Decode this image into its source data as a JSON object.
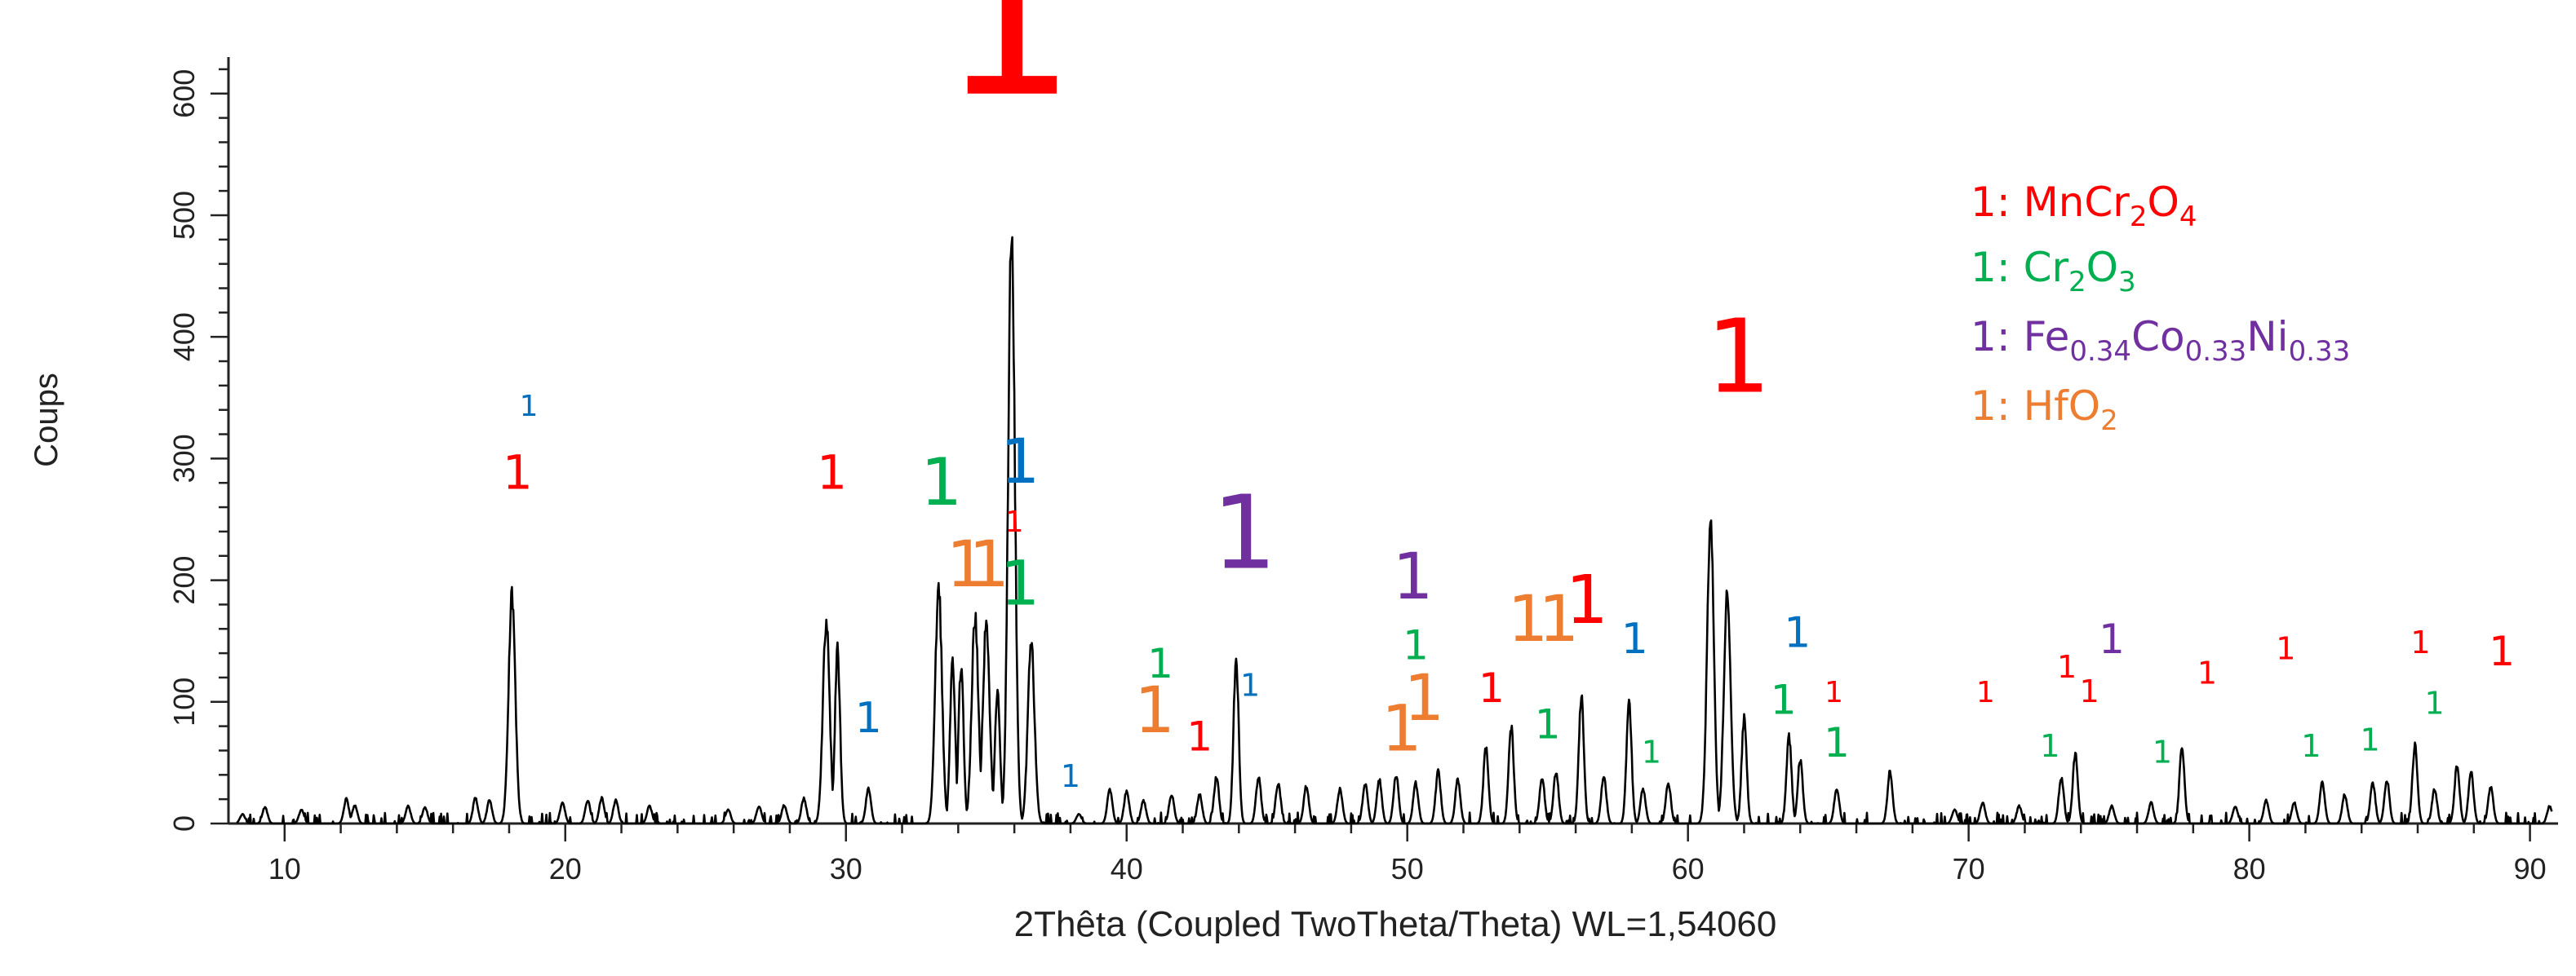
{
  "chart_data": {
    "type": "line",
    "title": "",
    "xlabel": "2Thêta (Coupled TwoTheta/Theta) WL=1,54060",
    "ylabel": "Coups",
    "xlim": [
      8,
      91
    ],
    "ylim": [
      0,
      630
    ],
    "xticks": [
      "10",
      "20",
      "30",
      "40",
      "50",
      "60",
      "70",
      "80",
      "90"
    ],
    "yticks": [
      "0",
      "100",
      "200",
      "300",
      "400",
      "500",
      "600"
    ],
    "grid": false,
    "legend_position": "top-right",
    "colors": {
      "trace": "#000000",
      "MnCr2O4": "#ff0000",
      "Cr2O3": "#00b050",
      "FeCoNi": "#7030a0",
      "HfO2": "#ed7d31",
      "unlabeled": "#0070c0"
    },
    "legend": [
      {
        "marker": "1",
        "colon": ": ",
        "parts": [
          [
            "MnCr",
            ""
          ],
          [
            "2",
            "sub"
          ],
          [
            "O",
            ""
          ],
          [
            "4",
            "sub"
          ]
        ],
        "color_key": "MnCr2O4"
      },
      {
        "marker": "1",
        "colon": ": ",
        "parts": [
          [
            "Cr",
            ""
          ],
          [
            "2",
            "sub"
          ],
          [
            "O",
            ""
          ],
          [
            "3",
            "sub"
          ]
        ],
        "color_key": "Cr2O3"
      },
      {
        "marker": "1",
        "colon": ": ",
        "parts": [
          [
            "Fe",
            ""
          ],
          [
            "0.34",
            "sub"
          ],
          [
            "Co",
            ""
          ],
          [
            "0.33",
            "sub"
          ],
          [
            "Ni",
            ""
          ],
          [
            "0.33",
            "sub"
          ]
        ],
        "color_key": "FeCoNi"
      },
      {
        "marker": "1",
        "colon": ": ",
        "parts": [
          [
            "HfO",
            ""
          ],
          [
            "2",
            "sub"
          ]
        ],
        "color_key": "HfO2"
      }
    ],
    "peaks": [
      [
        8.5,
        8
      ],
      [
        9.3,
        14
      ],
      [
        10.6,
        12
      ],
      [
        12.2,
        21
      ],
      [
        12.5,
        16
      ],
      [
        14.4,
        15
      ],
      [
        15.0,
        14
      ],
      [
        16.8,
        22
      ],
      [
        17.3,
        20
      ],
      [
        18.1,
        196
      ],
      [
        19.9,
        18
      ],
      [
        20.8,
        20
      ],
      [
        21.3,
        22
      ],
      [
        21.8,
        20
      ],
      [
        23.0,
        15
      ],
      [
        25.8,
        12
      ],
      [
        26.9,
        15
      ],
      [
        27.8,
        16
      ],
      [
        28.5,
        22
      ],
      [
        29.3,
        175
      ],
      [
        29.7,
        150
      ],
      [
        30.8,
        30
      ],
      [
        33.3,
        205
      ],
      [
        33.8,
        140
      ],
      [
        34.1,
        135
      ],
      [
        34.6,
        178
      ],
      [
        35.0,
        175
      ],
      [
        35.4,
        115
      ],
      [
        35.9,
        505
      ],
      [
        36.6,
        155
      ],
      [
        38.3,
        8
      ],
      [
        39.4,
        30
      ],
      [
        40.0,
        28
      ],
      [
        40.6,
        20
      ],
      [
        41.6,
        25
      ],
      [
        42.6,
        25
      ],
      [
        43.2,
        40
      ],
      [
        43.9,
        145
      ],
      [
        44.7,
        40
      ],
      [
        45.4,
        35
      ],
      [
        46.4,
        32
      ],
      [
        47.6,
        30
      ],
      [
        48.5,
        35
      ],
      [
        49.0,
        38
      ],
      [
        49.6,
        42
      ],
      [
        50.3,
        35
      ],
      [
        51.1,
        45
      ],
      [
        51.8,
        38
      ],
      [
        52.8,
        65
      ],
      [
        53.7,
        85
      ],
      [
        54.8,
        40
      ],
      [
        55.3,
        45
      ],
      [
        56.2,
        110
      ],
      [
        57.0,
        42
      ],
      [
        57.9,
        105
      ],
      [
        58.4,
        30
      ],
      [
        59.3,
        35
      ],
      [
        60.8,
        260
      ],
      [
        61.4,
        200
      ],
      [
        62.0,
        90
      ],
      [
        63.6,
        75
      ],
      [
        64.0,
        55
      ],
      [
        65.3,
        30
      ],
      [
        67.2,
        45
      ],
      [
        69.5,
        12
      ],
      [
        70.5,
        18
      ],
      [
        71.8,
        15
      ],
      [
        73.3,
        40
      ],
      [
        73.8,
        60
      ],
      [
        75.1,
        15
      ],
      [
        76.5,
        18
      ],
      [
        77.6,
        65
      ],
      [
        79.5,
        15
      ],
      [
        80.6,
        20
      ],
      [
        81.6,
        18
      ],
      [
        82.6,
        35
      ],
      [
        83.4,
        25
      ],
      [
        84.4,
        35
      ],
      [
        84.9,
        38
      ],
      [
        85.9,
        68
      ],
      [
        86.6,
        30
      ],
      [
        87.4,
        50
      ],
      [
        87.9,
        45
      ],
      [
        88.6,
        32
      ],
      [
        90.7,
        15
      ]
    ],
    "annotations": [
      {
        "text": "1",
        "x": 18.3,
        "y": 275,
        "phase": "MnCr2O4",
        "size": 58
      },
      {
        "text": "1",
        "x": 18.7,
        "y": 335,
        "phase": "unlabeled",
        "size": 36
      },
      {
        "text": "1",
        "x": 29.5,
        "y": 275,
        "phase": "MnCr2O4",
        "size": 58
      },
      {
        "text": "1",
        "x": 30.8,
        "y": 75,
        "phase": "unlabeled",
        "size": 52
      },
      {
        "text": "1",
        "x": 33.4,
        "y": 262,
        "phase": "Cr2O3",
        "size": 80
      },
      {
        "text": "1",
        "x": 34.3,
        "y": 195,
        "phase": "HfO2",
        "size": 78
      },
      {
        "text": "1",
        "x": 35.1,
        "y": 195,
        "phase": "HfO2",
        "size": 78
      },
      {
        "text": "1",
        "x": 35.8,
        "y": 600,
        "phase": "MnCr2O4",
        "size": 260
      },
      {
        "text": "1",
        "x": 36.2,
        "y": 280,
        "phase": "unlabeled",
        "size": 76
      },
      {
        "text": "1",
        "x": 36.0,
        "y": 240,
        "phase": "MnCr2O4",
        "size": 36
      },
      {
        "text": "1",
        "x": 36.2,
        "y": 180,
        "phase": "Cr2O3",
        "size": 76
      },
      {
        "text": "1",
        "x": 38.0,
        "y": 30,
        "phase": "unlabeled",
        "size": 38
      },
      {
        "text": "1",
        "x": 41.2,
        "y": 120,
        "phase": "Cr2O3",
        "size": 50
      },
      {
        "text": "1",
        "x": 41.0,
        "y": 75,
        "phase": "HfO2",
        "size": 78
      },
      {
        "text": "1",
        "x": 42.6,
        "y": 60,
        "phase": "MnCr2O4",
        "size": 50
      },
      {
        "text": "1",
        "x": 44.2,
        "y": 210,
        "phase": "FeCoNi",
        "size": 125
      },
      {
        "text": "1",
        "x": 44.4,
        "y": 105,
        "phase": "unlabeled",
        "size": 38
      },
      {
        "text": "1",
        "x": 50.2,
        "y": 185,
        "phase": "FeCoNi",
        "size": 78
      },
      {
        "text": "1",
        "x": 50.3,
        "y": 135,
        "phase": "Cr2O3",
        "size": 50
      },
      {
        "text": "1",
        "x": 49.8,
        "y": 60,
        "phase": "HfO2",
        "size": 78
      },
      {
        "text": "1",
        "x": 50.6,
        "y": 85,
        "phase": "HfO2",
        "size": 78
      },
      {
        "text": "1",
        "x": 53.0,
        "y": 100,
        "phase": "MnCr2O4",
        "size": 50
      },
      {
        "text": "1",
        "x": 54.3,
        "y": 150,
        "phase": "HfO2",
        "size": 78
      },
      {
        "text": "1",
        "x": 55.4,
        "y": 150,
        "phase": "HfO2",
        "size": 78
      },
      {
        "text": "1",
        "x": 56.4,
        "y": 165,
        "phase": "MnCr2O4",
        "size": 82
      },
      {
        "text": "1",
        "x": 55.0,
        "y": 70,
        "phase": "Cr2O3",
        "size": 50
      },
      {
        "text": "1",
        "x": 58.1,
        "y": 140,
        "phase": "unlabeled",
        "size": 52
      },
      {
        "text": "1",
        "x": 58.7,
        "y": 50,
        "phase": "Cr2O3",
        "size": 38
      },
      {
        "text": "1",
        "x": 61.8,
        "y": 355,
        "phase": "MnCr2O4",
        "size": 125
      },
      {
        "text": "1",
        "x": 63.4,
        "y": 90,
        "phase": "Cr2O3",
        "size": 50
      },
      {
        "text": "1",
        "x": 63.9,
        "y": 145,
        "phase": "unlabeled",
        "size": 52
      },
      {
        "text": "1",
        "x": 65.2,
        "y": 100,
        "phase": "MnCr2O4",
        "size": 36
      },
      {
        "text": "1",
        "x": 65.3,
        "y": 55,
        "phase": "Cr2O3",
        "size": 50
      },
      {
        "text": "1",
        "x": 70.6,
        "y": 100,
        "phase": "MnCr2O4",
        "size": 36
      },
      {
        "text": "1",
        "x": 72.9,
        "y": 55,
        "phase": "Cr2O3",
        "size": 38
      },
      {
        "text": "1",
        "x": 73.5,
        "y": 120,
        "phase": "MnCr2O4",
        "size": 38
      },
      {
        "text": "1",
        "x": 74.3,
        "y": 100,
        "phase": "MnCr2O4",
        "size": 38
      },
      {
        "text": "1",
        "x": 75.1,
        "y": 140,
        "phase": "FeCoNi",
        "size": 50
      },
      {
        "text": "1",
        "x": 76.9,
        "y": 50,
        "phase": "Cr2O3",
        "size": 38
      },
      {
        "text": "1",
        "x": 78.5,
        "y": 115,
        "phase": "MnCr2O4",
        "size": 38
      },
      {
        "text": "1",
        "x": 81.3,
        "y": 135,
        "phase": "MnCr2O4",
        "size": 38
      },
      {
        "text": "1",
        "x": 82.2,
        "y": 55,
        "phase": "Cr2O3",
        "size": 38
      },
      {
        "text": "1",
        "x": 84.3,
        "y": 60,
        "phase": "Cr2O3",
        "size": 38
      },
      {
        "text": "1",
        "x": 86.1,
        "y": 140,
        "phase": "MnCr2O4",
        "size": 38
      },
      {
        "text": "1",
        "x": 86.6,
        "y": 90,
        "phase": "Cr2O3",
        "size": 38
      },
      {
        "text": "1",
        "x": 89.0,
        "y": 130,
        "phase": "MnCr2O4",
        "size": 50
      }
    ]
  }
}
